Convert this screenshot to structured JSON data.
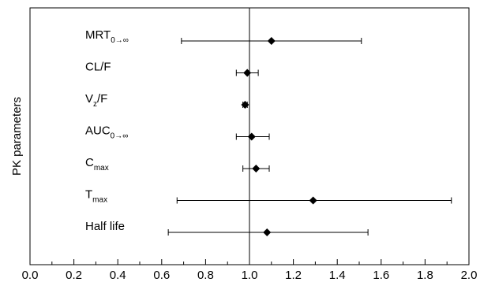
{
  "chart_data": {
    "type": "forest",
    "ylabel": "PK parameters",
    "xlabel": "",
    "xlim": [
      0.0,
      2.0
    ],
    "x_ticks": [
      "0.0",
      "0.2",
      "0.4",
      "0.6",
      "0.8",
      "1.0",
      "1.2",
      "1.4",
      "1.6",
      "1.8",
      "2.0"
    ],
    "reference_line": 1.0,
    "grid": false,
    "parameters": [
      {
        "label": "MRT",
        "subscript": "0→∞",
        "estimate": 1.1,
        "lower": 0.69,
        "upper": 1.51
      },
      {
        "label": "CL/F",
        "subscript": "",
        "estimate": 0.99,
        "lower": 0.94,
        "upper": 1.04
      },
      {
        "label": "V",
        "subscript": "z",
        "suffix": "/F",
        "estimate": 0.98,
        "lower": 0.97,
        "upper": 0.99
      },
      {
        "label": "AUC",
        "subscript": "0→∞",
        "estimate": 1.01,
        "lower": 0.94,
        "upper": 1.09
      },
      {
        "label": "C",
        "subscript": "max",
        "estimate": 1.03,
        "lower": 0.97,
        "upper": 1.09
      },
      {
        "label": "T",
        "subscript": "max",
        "estimate": 1.29,
        "lower": 0.67,
        "upper": 1.92
      },
      {
        "label": "Half life",
        "subscript": "",
        "estimate": 1.08,
        "lower": 0.63,
        "upper": 1.54
      }
    ]
  }
}
